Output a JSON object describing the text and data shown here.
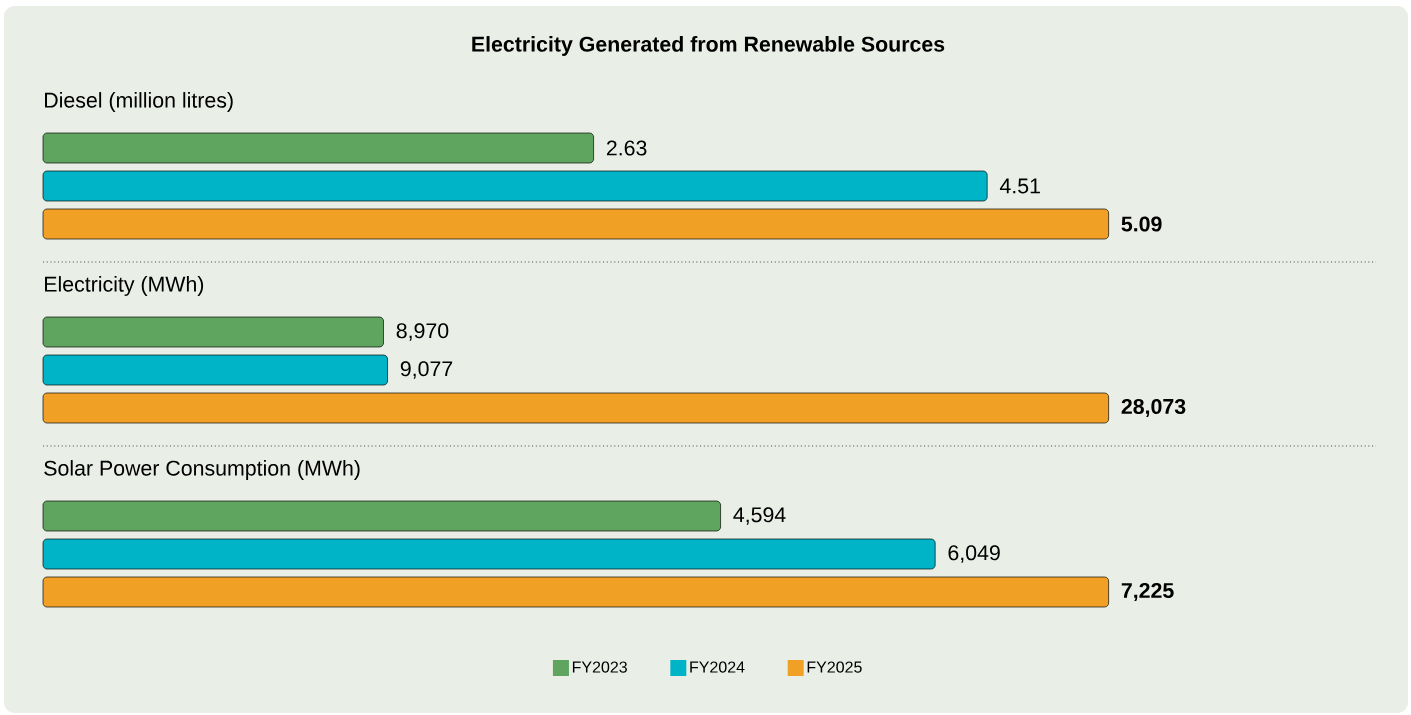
{
  "chart_data": [
    {
      "type": "bar",
      "orientation": "horizontal",
      "title": "Electricity Generated from Renewable Sources",
      "subtitle": "Diesel (million litres)",
      "categories": [
        null
      ],
      "tick_labels": false,
      "series": [
        {
          "color": "#5fa55f",
          "values": [
            2.63
          ],
          "value_labels": [
            "2.63"
          ]
        },
        {
          "color": "#00b4c8",
          "values": [
            4.51
          ],
          "value_labels": [
            "4.51"
          ]
        },
        {
          "color": "#f0a024",
          "values": [
            5.09
          ],
          "value_labels": [
            "5.09"
          ]
        }
      ]
    },
    {
      "type": "bar",
      "orientation": "horizontal",
      "subtitle": "Electricity (MWh)",
      "categories": [
        null
      ],
      "tick_labels": false,
      "series": [
        {
          "color": "#5fa55f",
          "values": [
            8970
          ],
          "value_labels": [
            "8,970"
          ]
        },
        {
          "color": "#00b4c8",
          "values": [
            9077
          ],
          "value_labels": [
            "9,077"
          ]
        },
        {
          "color": "#f0a024",
          "values": [
            28073
          ],
          "value_labels": [
            "28,073"
          ]
        }
      ]
    },
    {
      "type": "bar",
      "orientation": "horizontal",
      "subtitle": "Solar Power Consumption (MWh)",
      "categories": [
        null
      ],
      "tick_labels": false,
      "legend": "bottom",
      "series": [
        {
          "name": "FY2023",
          "color": "#5fa55f",
          "values": [
            4594
          ],
          "value_labels": [
            "4,594"
          ]
        },
        {
          "name": "FY2024",
          "color": "#00b4c8",
          "values": [
            6049
          ],
          "value_labels": [
            "6,049"
          ]
        },
        {
          "name": "FY2025",
          "color": "#f0a024",
          "values": [
            7225
          ],
          "value_labels": [
            "7,225"
          ]
        }
      ]
    }
  ]
}
